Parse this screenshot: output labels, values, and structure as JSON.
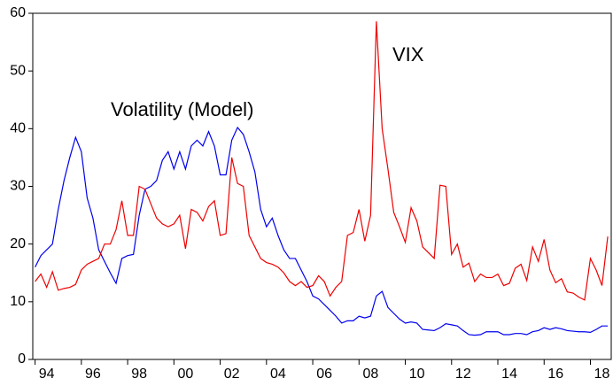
{
  "chart_data": {
    "type": "line",
    "x": [
      1994,
      1994.25,
      1994.5,
      1994.75,
      1995,
      1995.25,
      1995.5,
      1995.75,
      1996,
      1996.25,
      1996.5,
      1996.75,
      1997,
      1997.25,
      1997.5,
      1997.75,
      1998,
      1998.25,
      1998.5,
      1998.75,
      1999,
      1999.25,
      1999.5,
      1999.75,
      2000,
      2000.25,
      2000.5,
      2000.75,
      2001,
      2001.25,
      2001.5,
      2001.75,
      2002,
      2002.25,
      2002.5,
      2002.75,
      2003,
      2003.25,
      2003.5,
      2003.75,
      2004,
      2004.25,
      2004.5,
      2004.75,
      2005,
      2005.25,
      2005.5,
      2005.75,
      2006,
      2006.25,
      2006.5,
      2006.75,
      2007,
      2007.25,
      2007.5,
      2007.75,
      2008,
      2008.25,
      2008.5,
      2008.75,
      2009,
      2009.25,
      2009.5,
      2009.75,
      2010,
      2010.25,
      2010.5,
      2010.75,
      2011,
      2011.25,
      2011.5,
      2011.75,
      2012,
      2012.25,
      2012.5,
      2012.75,
      2013,
      2013.25,
      2013.5,
      2013.75,
      2014,
      2014.25,
      2014.5,
      2014.75,
      2015,
      2015.25,
      2015.5,
      2015.75,
      2016,
      2016.25,
      2016.5,
      2016.75,
      2017,
      2017.25,
      2017.5,
      2017.75,
      2018,
      2018.25,
      2018.5,
      2018.75
    ],
    "series": [
      {
        "name": "Volatility (Model)",
        "color": "#0000ee",
        "values": [
          16,
          18,
          19,
          20,
          26,
          31,
          35,
          38.5,
          36,
          28,
          24.5,
          19,
          17,
          15,
          13.2,
          17.5,
          18,
          18.2,
          25,
          29.5,
          30,
          31,
          34.5,
          36,
          33,
          36,
          33,
          37,
          38,
          37,
          39.5,
          37,
          32,
          32,
          38,
          40.2,
          39,
          36,
          32.5,
          26,
          23,
          24.5,
          21.5,
          19,
          17.5,
          17.5,
          15.5,
          13.5,
          11,
          10.5,
          9.5,
          8.5,
          7.5,
          6.3,
          6.7,
          6.7,
          7.5,
          7.2,
          7.5,
          11,
          11.8,
          9,
          8,
          7,
          6.3,
          6.5,
          6.3,
          5.2,
          5.1,
          5,
          5.5,
          6.2,
          6,
          5.8,
          5,
          4.3,
          4.2,
          4.3,
          4.8,
          4.8,
          4.8,
          4.3,
          4.3,
          4.5,
          4.5,
          4.3,
          4.8,
          5,
          5.5,
          5.2,
          5.5,
          5.3,
          5,
          4.9,
          4.8,
          4.8,
          4.7,
          5.2,
          5.8,
          5.8
        ]
      },
      {
        "name": "VIX",
        "color": "#ee0000",
        "values": [
          13.5,
          14.8,
          12.5,
          15.2,
          12,
          12.3,
          12.5,
          13,
          15.5,
          16.5,
          17,
          17.5,
          20,
          20,
          22.5,
          27.5,
          21.5,
          21.5,
          30,
          29.5,
          27,
          24.5,
          23.5,
          23,
          23.5,
          25,
          19.2,
          26,
          25.5,
          24,
          26.5,
          27.5,
          21.5,
          21.8,
          35,
          30.5,
          30,
          21.5,
          19.5,
          17.5,
          16.8,
          16.5,
          16,
          15,
          13.5,
          12.8,
          13.5,
          12.5,
          12.8,
          14.5,
          13.5,
          11,
          12.5,
          13.5,
          21.5,
          22,
          26,
          20.5,
          25,
          58.6,
          40,
          33,
          25.5,
          23,
          20.3,
          26.3,
          24,
          19.5,
          18.5,
          17.5,
          30.2,
          30,
          18.2,
          20,
          16,
          16.7,
          13.5,
          14.8,
          14.2,
          14.2,
          14.8,
          12.8,
          13.2,
          15.8,
          16.5,
          13.7,
          19.5,
          17,
          20.8,
          15.5,
          13.3,
          14,
          11.7,
          11.5,
          10.8,
          10.3,
          17.5,
          15.5,
          12.8,
          21.3
        ]
      }
    ],
    "xlim": [
      1993.9,
      2018.9
    ],
    "xticks": [
      {
        "value": 1994,
        "label": "94"
      },
      {
        "value": 1996,
        "label": "96"
      },
      {
        "value": 1998,
        "label": "98"
      },
      {
        "value": 2000,
        "label": "00"
      },
      {
        "value": 2002,
        "label": "02"
      },
      {
        "value": 2004,
        "label": "04"
      },
      {
        "value": 2006,
        "label": "06"
      },
      {
        "value": 2008,
        "label": "08"
      },
      {
        "value": 2010,
        "label": "10"
      },
      {
        "value": 2012,
        "label": "12"
      },
      {
        "value": 2014,
        "label": "14"
      },
      {
        "value": 2016,
        "label": "16"
      },
      {
        "value": 2018,
        "label": "18"
      }
    ],
    "ylim": [
      0,
      60
    ],
    "yticks": [
      0,
      10,
      20,
      30,
      40,
      50,
      60
    ]
  }
}
